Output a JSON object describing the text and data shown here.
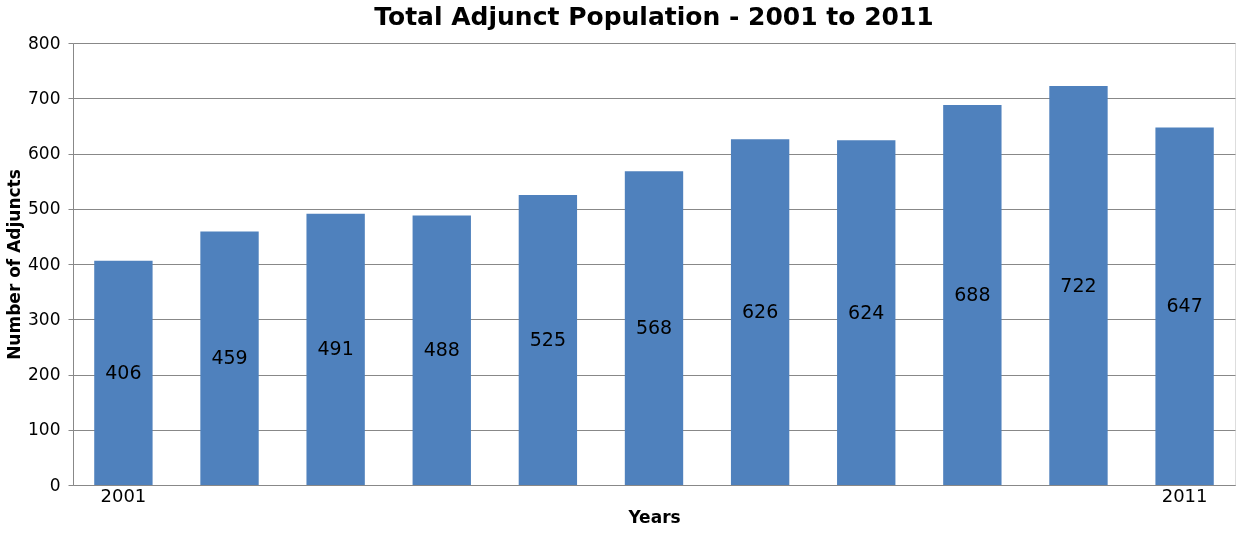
{
  "chart_data": {
    "type": "bar",
    "title": "Total Adjunct Population - 2001 to 2011",
    "xlabel": "Years",
    "ylabel": "Number of Adjuncts",
    "categories": [
      "2001",
      null,
      null,
      null,
      null,
      null,
      null,
      null,
      null,
      null,
      "2011"
    ],
    "values": [
      406,
      459,
      491,
      488,
      525,
      568,
      626,
      624,
      688,
      722,
      647
    ],
    "color": "#4f81bd",
    "ylim": [
      0,
      800
    ],
    "yticks": [
      0,
      100,
      200,
      300,
      400,
      500,
      600,
      700,
      800
    ],
    "grid": "y",
    "data_labels": true
  }
}
